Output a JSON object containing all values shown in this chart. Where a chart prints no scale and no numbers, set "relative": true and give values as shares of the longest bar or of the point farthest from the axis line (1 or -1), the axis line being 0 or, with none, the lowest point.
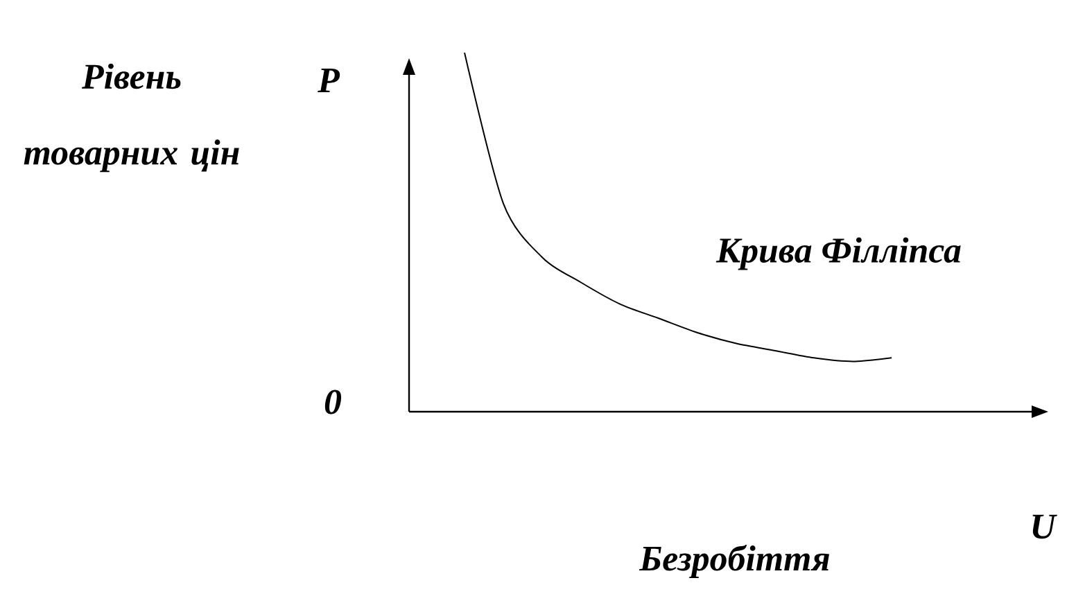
{
  "chart_data": {
    "type": "line",
    "relative": true,
    "xlabel": "Безробіття",
    "ylabel": "Рівень товарних цін",
    "categories": [
      null,
      null,
      null,
      null,
      null,
      null,
      null,
      null,
      null,
      null,
      null,
      null
    ],
    "series": [
      {
        "color": "#000000",
        "values": [
          1.0,
          0.58,
          0.43,
          0.36,
          0.3,
          0.26,
          0.22,
          0.19,
          0.17,
          0.15,
          0.14,
          0.15
        ]
      }
    ],
    "annotations": [
      "P",
      "0",
      "U",
      "Крива Філліпса"
    ]
  }
}
